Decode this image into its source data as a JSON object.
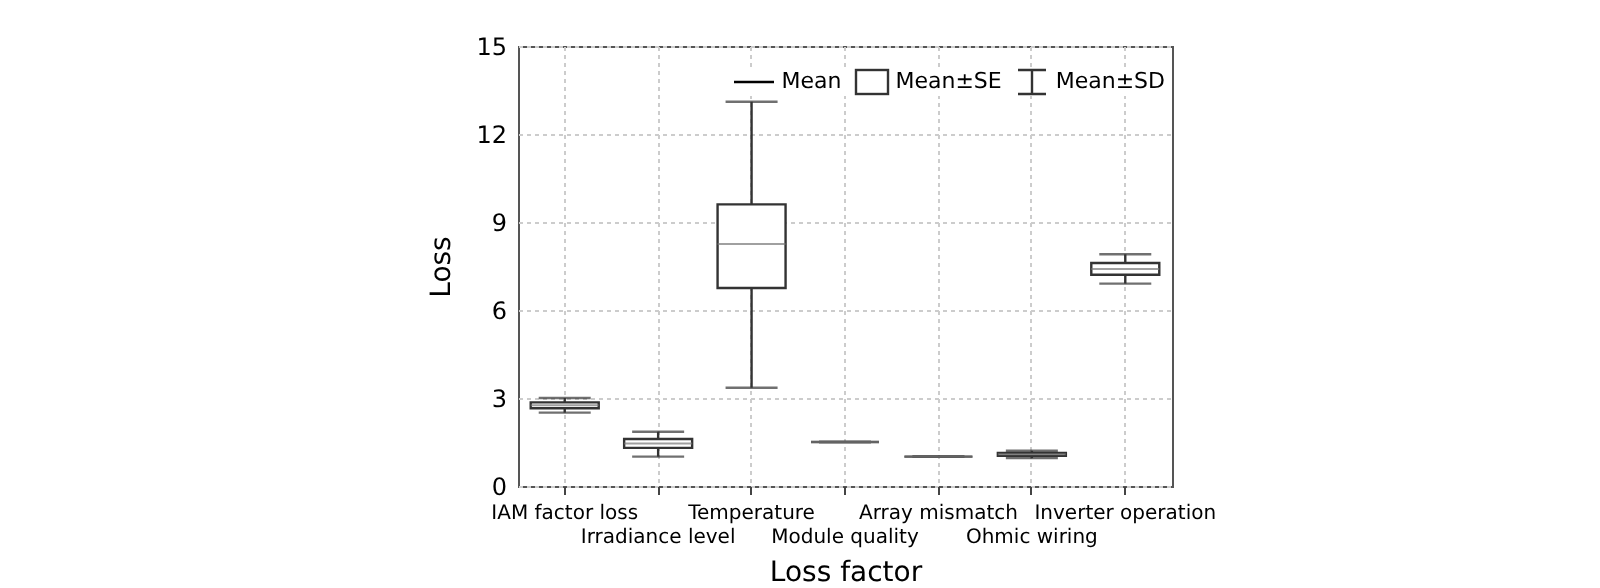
{
  "chart_data": {
    "type": "box",
    "xlabel": "Loss factor",
    "ylabel": "Loss",
    "categories": [
      "IAM factor loss",
      "Irradiance level",
      "Temperature",
      "Module quality",
      "Array mismatch",
      "Ohmic wiring",
      "Inverter operation"
    ],
    "boxes": [
      {
        "low": 2.5,
        "q1": 2.65,
        "median": 2.75,
        "q3": 2.85,
        "high": 3.0
      },
      {
        "low": 1.0,
        "q1": 1.3,
        "median": 1.45,
        "q3": 1.6,
        "high": 1.85
      },
      {
        "low": 3.35,
        "q1": 6.75,
        "median": 8.25,
        "q3": 9.6,
        "high": 13.1
      },
      {
        "low": 1.5,
        "q1": 1.5,
        "median": 1.5,
        "q3": 1.5,
        "high": 1.5
      },
      {
        "low": 1.0,
        "q1": 1.0,
        "median": 1.0,
        "q3": 1.0,
        "high": 1.0
      },
      {
        "low": 0.95,
        "q1": 1.03,
        "median": 1.08,
        "q3": 1.13,
        "high": 1.2
      },
      {
        "low": 6.9,
        "q1": 7.2,
        "median": 7.4,
        "q3": 7.6,
        "high": 7.9
      }
    ],
    "ylim": [
      0,
      15
    ],
    "yticks": [
      0,
      3,
      6,
      9,
      12,
      15
    ],
    "grid": true,
    "annotations": [
      "Mean",
      "Mean±SE",
      "Mean±SD"
    ]
  }
}
